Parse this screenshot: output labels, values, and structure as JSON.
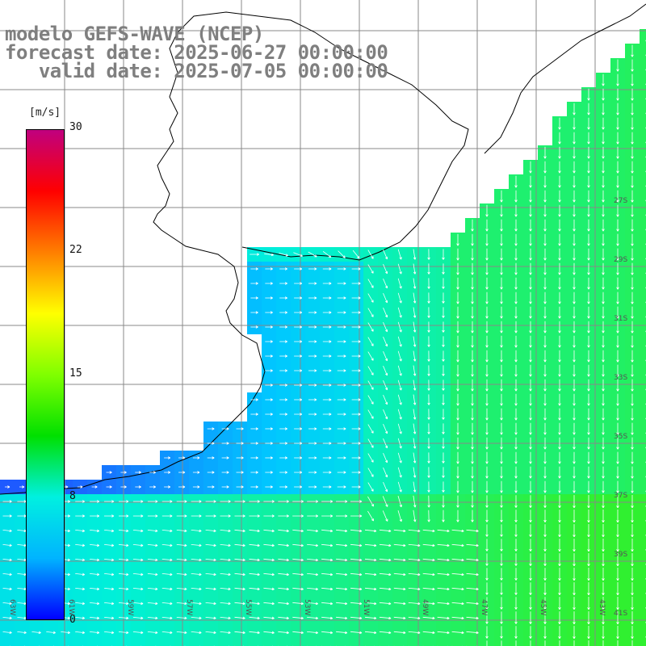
{
  "title": {
    "line1": "modelo GEFS-WAVE (NCEP)",
    "line2": "forecast date: 2025-06-27 00:00:00",
    "line3": "   valid date: 2025-07-05 00:00:00"
  },
  "colorbar": {
    "unit": "[m/s]",
    "ticks": [
      "30",
      "22",
      "15",
      "8",
      "0"
    ],
    "colors": [
      "#0000ff",
      "#00b4ff",
      "#00f0e0",
      "#00e000",
      "#80ff00",
      "#ffff00",
      "#ff7f00",
      "#ff0000",
      "#c0007f"
    ]
  },
  "map": {
    "parameter": "wind speed and direction",
    "ocean_colors": {
      "low": "#1e5aff",
      "mid": "#00c8ff",
      "cyan": "#00f0d8",
      "high": "#30f030"
    },
    "lon_labels": [
      "63W",
      "61W",
      "59W",
      "57W",
      "55W",
      "53W",
      "51W",
      "49W",
      "47W",
      "45W",
      "43W"
    ],
    "lat_labels": [
      "27S",
      "29S",
      "31S",
      "33S",
      "35S",
      "37S",
      "39S",
      "41S"
    ]
  }
}
